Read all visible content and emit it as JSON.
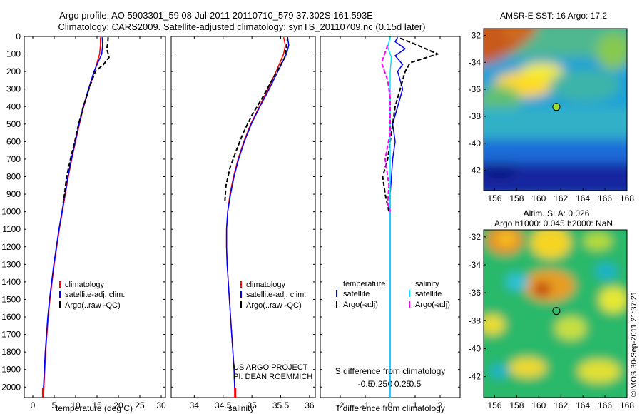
{
  "header": {
    "line1": "Argo profile: AO 5903301_59 08-Jul-2011 20110710_579 37.302S 161.593E",
    "line2": "Climatology: CARS2009. Satellite-adjusted climatology: synTS_20110709.nc (0.15d later)"
  },
  "project": {
    "line1": "US ARGO PROJECT",
    "line2": "PI: DEAN ROEMMICH"
  },
  "stamp": "©IMOS 30-Sep-2011 21:37:21",
  "colors": {
    "climatology": "#ff0000",
    "satellite": "#0000ff",
    "argo": "#000000",
    "sat_sal": "#00e5ff",
    "argo_sal": "#ff00ff"
  },
  "chart_data": [
    {
      "type": "line",
      "id": "temperature",
      "xlabel": "temperature (deg C)",
      "xlim": [
        -2,
        31
      ],
      "xticks": [
        0,
        5,
        10,
        15,
        20,
        25,
        30
      ],
      "ylim": [
        2060,
        0
      ],
      "yticks": [
        0,
        100,
        200,
        300,
        400,
        500,
        600,
        700,
        800,
        900,
        1000,
        1100,
        1200,
        1300,
        1400,
        1500,
        1600,
        1700,
        1800,
        1900,
        2000
      ],
      "legend": [
        "climatology",
        "satellite-adj. clim.",
        "Argo(..raw -QC)"
      ],
      "series": [
        {
          "name": "climatology",
          "color": "#ff0000",
          "points": [
            [
              15.8,
              5
            ],
            [
              15.8,
              50
            ],
            [
              15.6,
              100
            ],
            [
              14.4,
              200
            ],
            [
              13.1,
              300
            ],
            [
              11.9,
              400
            ],
            [
              10.9,
              500
            ],
            [
              10.0,
              600
            ],
            [
              9.1,
              700
            ],
            [
              8.3,
              800
            ],
            [
              7.6,
              900
            ],
            [
              6.9,
              1000
            ],
            [
              6.2,
              1100
            ],
            [
              5.6,
              1200
            ],
            [
              5.0,
              1300
            ],
            [
              4.5,
              1400
            ],
            [
              4.0,
              1500
            ],
            [
              3.6,
              1600
            ],
            [
              3.3,
              1700
            ],
            [
              3.0,
              1800
            ],
            [
              2.8,
              1900
            ],
            [
              2.6,
              2000
            ],
            [
              2.5,
              2060
            ]
          ]
        },
        {
          "name": "satellite-adj. clim.",
          "color": "#0000ff",
          "points": [
            [
              16.2,
              5
            ],
            [
              16.3,
              50
            ],
            [
              16.1,
              100
            ],
            [
              14.3,
              200
            ],
            [
              13.0,
              300
            ],
            [
              11.8,
              400
            ],
            [
              10.8,
              500
            ],
            [
              9.9,
              600
            ],
            [
              9.0,
              700
            ],
            [
              8.2,
              800
            ],
            [
              7.5,
              900
            ],
            [
              6.8,
              1000
            ],
            [
              6.1,
              1100
            ],
            [
              5.5,
              1200
            ],
            [
              4.9,
              1300
            ],
            [
              4.4,
              1400
            ],
            [
              3.9,
              1500
            ],
            [
              3.5,
              1600
            ],
            [
              3.2,
              1700
            ],
            [
              2.9,
              1800
            ],
            [
              2.7,
              1900
            ],
            [
              2.5,
              2000
            ],
            [
              2.4,
              2060
            ]
          ]
        },
        {
          "name": "Argo(..raw -QC)",
          "color": "#000000",
          "dashed": true,
          "points": [
            [
              17.6,
              5
            ],
            [
              17.5,
              40
            ],
            [
              17.3,
              70
            ],
            [
              17.8,
              120
            ],
            [
              16.5,
              160
            ],
            [
              14.6,
              200
            ],
            [
              13.1,
              300
            ],
            [
              11.8,
              400
            ],
            [
              10.7,
              500
            ],
            [
              9.8,
              600
            ],
            [
              8.8,
              700
            ],
            [
              7.9,
              800
            ],
            [
              7.4,
              900
            ],
            [
              7.1,
              950
            ]
          ]
        }
      ],
      "markers": [
        {
          "x": 2.4,
          "y": 2060,
          "color": "#ff0000"
        }
      ]
    },
    {
      "type": "line",
      "id": "salinity",
      "xlabel": "salinity",
      "xlim": [
        33.6,
        36.1
      ],
      "xticks": [
        34,
        34.5,
        35,
        35.5,
        36
      ],
      "ylim": [
        2060,
        0
      ],
      "legend": [
        "climatology",
        "satellite-adj. clim.",
        "Argo(..raw -QC)"
      ],
      "series": [
        {
          "name": "climatology",
          "color": "#ff0000",
          "points": [
            [
              35.55,
              5
            ],
            [
              35.58,
              50
            ],
            [
              35.55,
              100
            ],
            [
              35.42,
              200
            ],
            [
              35.28,
              300
            ],
            [
              35.13,
              400
            ],
            [
              34.98,
              500
            ],
            [
              34.86,
              600
            ],
            [
              34.76,
              700
            ],
            [
              34.68,
              800
            ],
            [
              34.62,
              900
            ],
            [
              34.58,
              1000
            ],
            [
              34.56,
              1100
            ],
            [
              34.56,
              1200
            ],
            [
              34.57,
              1300
            ],
            [
              34.59,
              1400
            ],
            [
              34.61,
              1500
            ],
            [
              34.63,
              1600
            ],
            [
              34.65,
              1700
            ],
            [
              34.67,
              1800
            ],
            [
              34.69,
              1900
            ],
            [
              34.7,
              2000
            ],
            [
              34.71,
              2060
            ]
          ]
        },
        {
          "name": "satellite-adj. clim.",
          "color": "#0000ff",
          "points": [
            [
              35.62,
              5
            ],
            [
              35.64,
              50
            ],
            [
              35.6,
              100
            ],
            [
              35.45,
              200
            ],
            [
              35.3,
              300
            ],
            [
              35.14,
              400
            ],
            [
              34.99,
              500
            ],
            [
              34.87,
              600
            ],
            [
              34.77,
              700
            ],
            [
              34.69,
              800
            ],
            [
              34.63,
              900
            ],
            [
              34.58,
              1000
            ],
            [
              34.56,
              1100
            ],
            [
              34.56,
              1200
            ],
            [
              34.57,
              1300
            ],
            [
              34.59,
              1400
            ],
            [
              34.61,
              1500
            ],
            [
              34.63,
              1600
            ],
            [
              34.65,
              1700
            ],
            [
              34.67,
              1800
            ],
            [
              34.69,
              1900
            ],
            [
              34.7,
              2000
            ],
            [
              34.71,
              2060
            ]
          ]
        },
        {
          "name": "Argo(..raw -QC)",
          "color": "#000000",
          "dashed": true,
          "points": [
            [
              35.62,
              5
            ],
            [
              35.6,
              60
            ],
            [
              35.57,
              120
            ],
            [
              35.4,
              220
            ],
            [
              35.18,
              350
            ],
            [
              35.0,
              450
            ],
            [
              34.85,
              550
            ],
            [
              34.73,
              650
            ],
            [
              34.62,
              750
            ],
            [
              34.55,
              850
            ],
            [
              34.53,
              950
            ]
          ]
        }
      ],
      "markers": [
        {
          "x": 34.71,
          "y": 2060,
          "color": "#ff0000"
        }
      ]
    },
    {
      "type": "line",
      "id": "differences",
      "xlabel": "T difference from climatology",
      "xlabel2": "S difference from climatology",
      "xlim": [
        -2.8,
        2.8
      ],
      "xticks": [
        -2,
        -1,
        0,
        1,
        2
      ],
      "xticklabels": [
        "-2",
        "-1",
        "0",
        "1",
        "2"
      ],
      "xticks_s": [
        -1.0,
        -0.5,
        0,
        0.5,
        1.0
      ],
      "xticklabels_s": [
        "-0.5",
        "-0.25",
        "0",
        "0.25",
        "0.5"
      ],
      "ylim": [
        2060,
        0
      ],
      "legend_titles": [
        "temperature",
        "salinity"
      ],
      "legend": [
        "satellite",
        "Argo(-adj)",
        "satellite",
        "Argo(-adj)"
      ],
      "series": [
        {
          "name": "satellite",
          "color": "#0000ff",
          "points": [
            [
              0.3,
              5
            ],
            [
              0.2,
              30
            ],
            [
              0.6,
              70
            ],
            [
              0.2,
              110
            ],
            [
              0.5,
              160
            ],
            [
              0.3,
              200
            ],
            [
              0.5,
              300
            ],
            [
              0.3,
              400
            ],
            [
              0.1,
              500
            ],
            [
              0.2,
              600
            ],
            [
              0.1,
              700
            ],
            [
              0.05,
              800
            ],
            [
              0.0,
              900
            ],
            [
              0.0,
              1000
            ],
            [
              0.0,
              1200
            ],
            [
              0.0,
              1400
            ],
            [
              0.0,
              1600
            ],
            [
              0.0,
              1800
            ],
            [
              0.0,
              2000
            ],
            [
              0.0,
              2060
            ]
          ]
        },
        {
          "name": "Argo(-adj)",
          "color": "#000000",
          "dashed": true,
          "points": [
            [
              0.4,
              10
            ],
            [
              1.1,
              50
            ],
            [
              1.9,
              100
            ],
            [
              0.8,
              150
            ],
            [
              0.6,
              200
            ],
            [
              0.4,
              300
            ],
            [
              0.2,
              400
            ],
            [
              0.0,
              600
            ],
            [
              -0.1,
              700
            ],
            [
              -0.3,
              800
            ],
            [
              -0.2,
              900
            ],
            [
              -0.05,
              1000
            ]
          ]
        },
        {
          "name": "satellite",
          "color": "#00e5ff",
          "points": [
            [
              0.0,
              5
            ],
            [
              -0.1,
              60
            ],
            [
              0.05,
              120
            ],
            [
              0.0,
              200
            ],
            [
              0.0,
              400
            ],
            [
              0.0,
              800
            ],
            [
              0.0,
              1200
            ],
            [
              0.0,
              1600
            ],
            [
              0.0,
              2060
            ]
          ]
        },
        {
          "name": "Argo(-adj)",
          "color": "#ff00ff",
          "dashed": true,
          "points": [
            [
              -0.1,
              50
            ],
            [
              -0.35,
              150
            ],
            [
              -0.1,
              250
            ],
            [
              0.0,
              350
            ],
            [
              0.0,
              550
            ],
            [
              -0.2,
              700
            ],
            [
              -0.05,
              850
            ],
            [
              -0.1,
              950
            ],
            [
              0.0,
              1000
            ]
          ]
        }
      ]
    },
    {
      "type": "heatmap",
      "id": "sst",
      "title": "AMSR-E SST: 16 Argo: 17.2",
      "xlim": [
        155,
        168
      ],
      "ylim": [
        -43.5,
        -31.5
      ],
      "xticks": [
        156,
        158,
        160,
        162,
        164,
        166,
        168
      ],
      "yticks": [
        -32,
        -34,
        -36,
        -38,
        -40,
        -42
      ],
      "float_position": {
        "lon": 161.593,
        "lat": -37.302
      }
    },
    {
      "type": "heatmap",
      "id": "sla",
      "title": "Altim. SLA: 0.026",
      "subtitle": "Argo h1000: 0.045 h2000: NaN",
      "xlim": [
        155,
        168
      ],
      "ylim": [
        -43.5,
        -31.5
      ],
      "xticks": [
        156,
        158,
        160,
        162,
        164,
        166,
        168
      ],
      "yticks": [
        -32,
        -34,
        -36,
        -38,
        -40,
        -42
      ],
      "float_position": {
        "lon": 161.593,
        "lat": -37.302
      }
    }
  ]
}
